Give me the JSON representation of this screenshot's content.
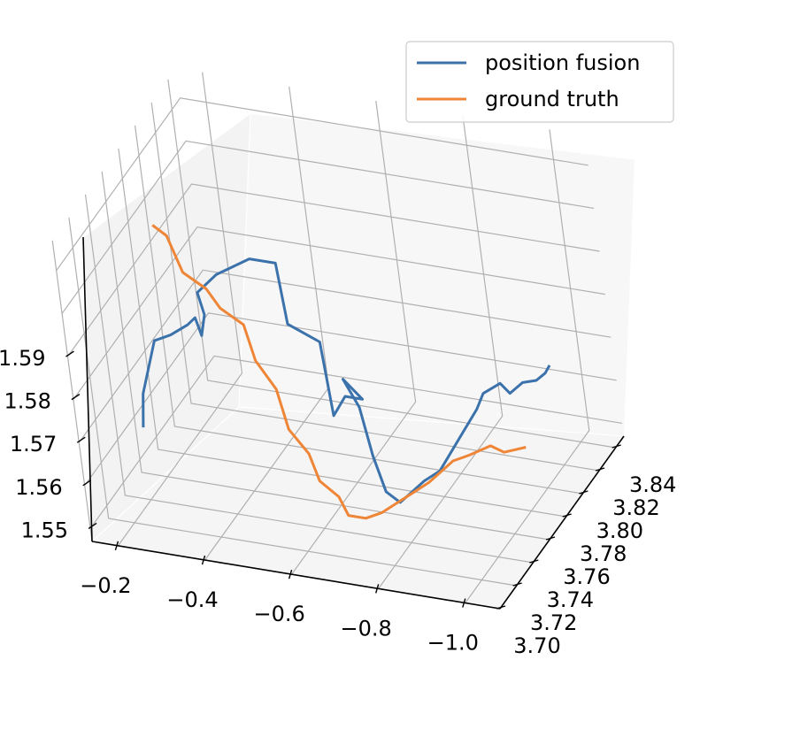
{
  "chart_data": {
    "type": "line",
    "projection": "3d",
    "title": "",
    "xlabel": "",
    "ylabel": "",
    "zlabel": "",
    "grid": true,
    "legend": "top-right",
    "axes": {
      "x": {
        "ticks": [
          "−0.2",
          "−0.4",
          "−0.6",
          "−0.8",
          "−1.0"
        ]
      },
      "y": {
        "ticks": [
          "3.70",
          "3.72",
          "3.74",
          "3.76",
          "3.78",
          "3.80",
          "3.82",
          "3.84"
        ]
      },
      "z": {
        "ticks": [
          "1.55",
          "1.56",
          "1.57",
          "1.58",
          "1.59"
        ]
      }
    },
    "series": [
      {
        "name": "position fusion",
        "color": "#3b72ab",
        "x": [
          -0.25,
          -0.26,
          -0.28,
          -0.32,
          -0.34,
          -0.36,
          -0.37,
          -0.36,
          -0.35,
          -0.4,
          -0.46,
          -0.52,
          -0.53,
          -0.6,
          -0.61,
          -0.62,
          -0.66,
          -0.62,
          -0.65,
          -0.69,
          -0.71,
          -0.74,
          -0.78,
          -0.82,
          -0.85,
          -0.88,
          -0.9,
          -0.92,
          -0.94,
          -0.95,
          -0.96,
          -0.96,
          -0.95
        ],
        "y": [
          3.72,
          3.72,
          3.73,
          3.73,
          3.74,
          3.74,
          3.74,
          3.75,
          3.75,
          3.75,
          3.76,
          3.76,
          3.76,
          3.76,
          3.76,
          3.77,
          3.77,
          3.77,
          3.77,
          3.76,
          3.76,
          3.76,
          3.77,
          3.77,
          3.78,
          3.79,
          3.79,
          3.8,
          3.8,
          3.81,
          3.82,
          3.83,
          3.84
        ],
        "z": [
          1.57,
          1.578,
          1.588,
          1.59,
          1.59,
          1.592,
          1.588,
          1.59,
          1.595,
          1.6,
          1.602,
          1.602,
          1.588,
          1.585,
          1.568,
          1.57,
          1.57,
          1.574,
          1.568,
          1.56,
          1.552,
          1.55,
          1.553,
          1.556,
          1.561,
          1.566,
          1.57,
          1.57,
          1.568,
          1.568,
          1.566,
          1.565,
          1.564
        ]
      },
      {
        "name": "ground truth",
        "color": "#ef8536",
        "x": [
          -0.15,
          -0.18,
          -0.23,
          -0.28,
          -0.33,
          -0.38,
          -0.42,
          -0.46,
          -0.5,
          -0.54,
          -0.58,
          -0.62,
          -0.66,
          -0.7,
          -0.74,
          -0.78,
          -0.82,
          -0.86,
          -0.9,
          -0.94,
          -0.97,
          -1.0,
          -1.03
        ],
        "y": [
          3.8,
          3.8,
          3.79,
          3.79,
          3.78,
          3.78,
          3.77,
          3.77,
          3.76,
          3.76,
          3.75,
          3.75,
          3.74,
          3.74,
          3.74,
          3.74,
          3.74,
          3.74,
          3.75,
          3.75,
          3.76,
          3.76,
          3.77
        ],
        "z": [
          1.594,
          1.592,
          1.587,
          1.584,
          1.583,
          1.58,
          1.575,
          1.569,
          1.563,
          1.558,
          1.555,
          1.552,
          1.551,
          1.551,
          1.553,
          1.556,
          1.559,
          1.562,
          1.565,
          1.567,
          1.567,
          1.566,
          1.565
        ]
      }
    ]
  }
}
